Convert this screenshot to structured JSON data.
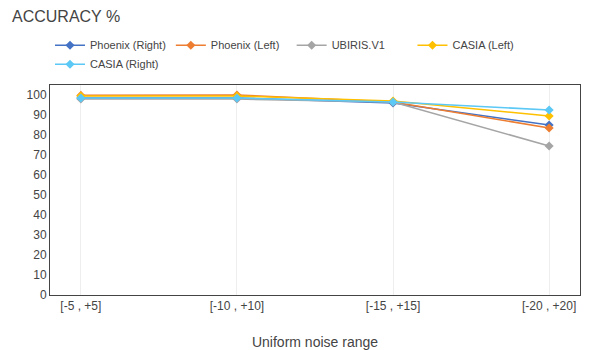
{
  "chart_data": {
    "type": "line",
    "title": "ACCURACY %",
    "x_label": "Uniform noise range",
    "categories": [
      "[-5 , +5]",
      "[-10 , +10]",
      "[-15 , +15]",
      "[-20 , +20]"
    ],
    "series": [
      {
        "name": "Phoenix (Right)",
        "color": "#4472C4",
        "marker": "diamond",
        "values": [
          98.5,
          98.5,
          96.0,
          85.0
        ]
      },
      {
        "name": "Phoenix (Left)",
        "color": "#ED7D31",
        "marker": "diamond",
        "values": [
          99.8,
          100.0,
          96.5,
          83.5
        ]
      },
      {
        "name": "UBIRIS.V1",
        "color": "#A5A5A5",
        "marker": "diamond",
        "values": [
          98.0,
          98.0,
          96.5,
          74.5
        ]
      },
      {
        "name": "CASIA (Left)",
        "color": "#FFC000",
        "marker": "diamond",
        "values": [
          99.5,
          99.5,
          97.0,
          89.5
        ]
      },
      {
        "name": "CASIA (Right)",
        "color": "#5BC8F5",
        "marker": "diamond",
        "values": [
          98.5,
          98.5,
          96.5,
          92.5
        ]
      }
    ],
    "ylim": [
      0,
      105
    ],
    "yticks": [
      0,
      10,
      20,
      30,
      40,
      50,
      60,
      70,
      80,
      90,
      100
    ],
    "grid": "x",
    "legend": "top"
  }
}
